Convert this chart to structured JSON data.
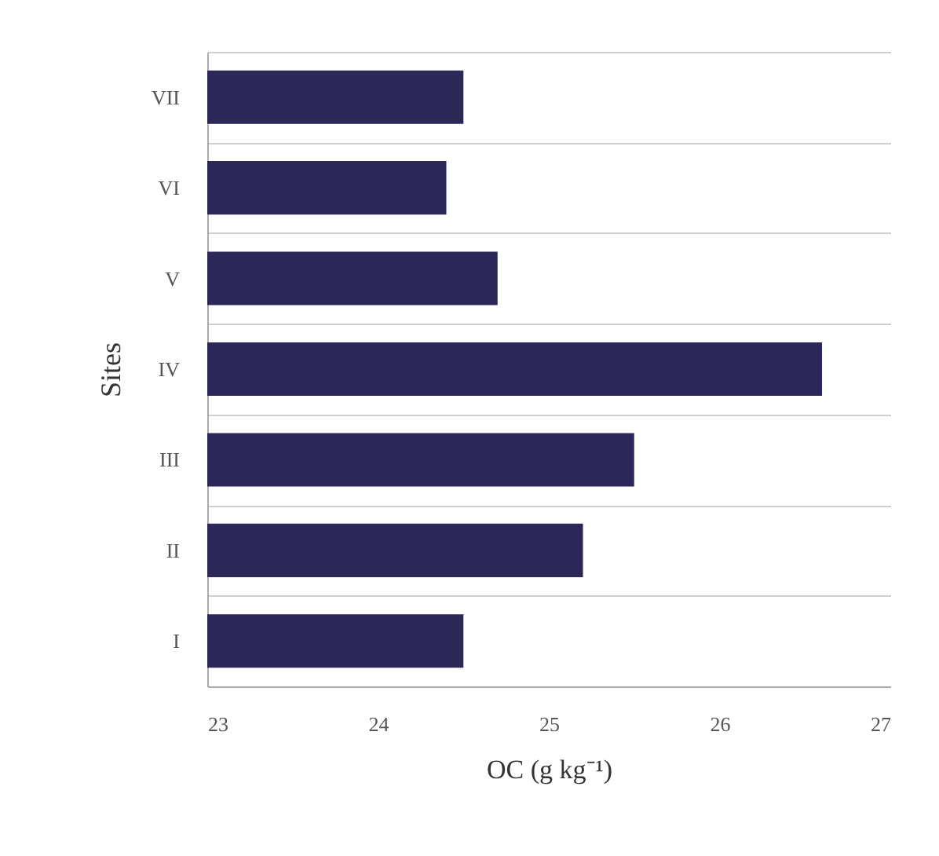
{
  "chart_data": {
    "type": "bar",
    "orientation": "horizontal",
    "categories": [
      "VII",
      "VI",
      "V",
      "IV",
      "III",
      "II",
      "I"
    ],
    "values": [
      24.5,
      24.4,
      24.7,
      26.6,
      25.5,
      25.2,
      24.5
    ],
    "color": "#2b2858",
    "xlim": [
      23,
      27
    ],
    "xticks": [
      23,
      24,
      25,
      26,
      27
    ],
    "xlabel": "OC (g kg⁻¹)",
    "ylabel": "Sites",
    "grid": "y"
  }
}
